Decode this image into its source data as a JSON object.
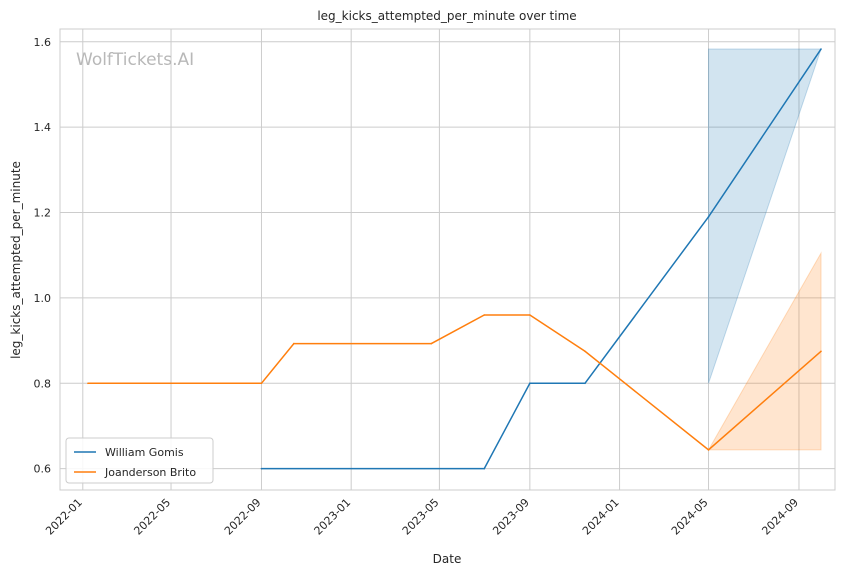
{
  "chart_data": {
    "type": "line",
    "title": "leg_kicks_attempted_per_minute over time",
    "xlabel": "Date",
    "ylabel": "leg_kicks_attempted_per_minute",
    "watermark": "WolfTickets.AI",
    "xlim": [
      "2021-12-01",
      "2024-10-20"
    ],
    "ylim": [
      0.55,
      1.63
    ],
    "x_ticks": [
      "2022-01",
      "2022-05",
      "2022-09",
      "2023-01",
      "2023-05",
      "2023-09",
      "2024-01",
      "2024-05",
      "2024-09"
    ],
    "y_ticks": [
      "0.6",
      "0.8",
      "1.0",
      "1.2",
      "1.4",
      "1.6"
    ],
    "grid": true,
    "legend_position": "lower-left",
    "series": [
      {
        "name": "William Gomis",
        "color": "#1f77b4",
        "x": [
          "2022-09-01",
          "2023-07-01",
          "2023-09-01",
          "2023-11-15",
          "2024-05-01",
          "2024-10-01"
        ],
        "values": [
          0.6,
          0.6,
          0.8,
          0.8,
          1.19,
          1.583
        ],
        "band": {
          "x": [
            "2024-05-01",
            "2024-10-01"
          ],
          "lower": [
            0.8,
            1.583
          ],
          "upper": [
            1.583,
            1.583
          ]
        }
      },
      {
        "name": "Joanderson Brito",
        "color": "#ff7f0e",
        "x": [
          "2022-01-08",
          "2022-09-01",
          "2022-10-15",
          "2023-04-20",
          "2023-07-01",
          "2023-09-01",
          "2023-11-15",
          "2024-05-01",
          "2024-10-01"
        ],
        "values": [
          0.8,
          0.8,
          0.893,
          0.893,
          0.96,
          0.96,
          0.875,
          0.644,
          0.875
        ],
        "band": {
          "x": [
            "2024-05-01",
            "2024-10-01"
          ],
          "lower": [
            0.644,
            0.644
          ],
          "upper": [
            0.644,
            1.105
          ]
        }
      }
    ]
  }
}
